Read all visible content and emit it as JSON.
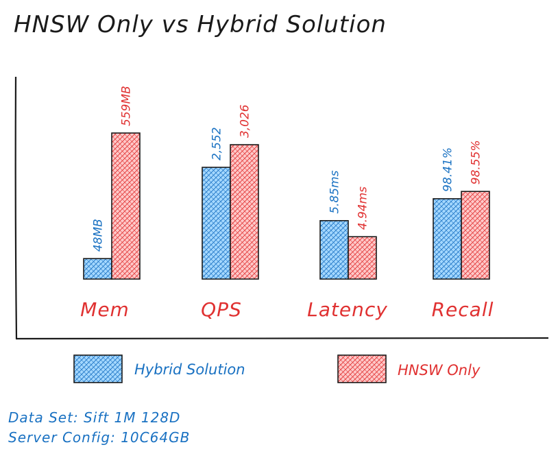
{
  "colors": {
    "hybrid": "#1971c2",
    "hnsw": "#e03131",
    "hybrid_fill": "#a5d8ff",
    "hnsw_fill": "#ffc9c9",
    "ink": "#1a1a1a"
  },
  "chart_data": {
    "type": "bar",
    "title": "HNSW Only vs Hybrid Solution",
    "categories": [
      "Mem",
      "QPS",
      "Latency",
      "Recall"
    ],
    "series": [
      {
        "name": "Hybrid Solution",
        "color_key": "hybrid",
        "labels": [
          "48MB",
          "2,552",
          "5.85ms",
          "98.41%"
        ]
      },
      {
        "name": "HNSW Only",
        "color_key": "hnsw",
        "labels": [
          "559MB",
          "3,026",
          "4.94ms",
          "98.55%"
        ]
      }
    ],
    "values": {
      "Mem": [
        48,
        559
      ],
      "QPS": [
        2552,
        3026
      ],
      "Latency": [
        5.85,
        4.94
      ],
      "Recall": [
        98.41,
        98.55
      ]
    },
    "bar_levels": {
      "Mem": [
        0.14,
        1.0
      ],
      "QPS": [
        0.765,
        0.92
      ],
      "Latency": [
        0.4,
        0.29
      ],
      "Recall": [
        0.55,
        0.6
      ]
    },
    "grid": false,
    "legend_position": "bottom"
  },
  "notes": {
    "line1": "Data Set: Sift 1M 128D",
    "line2": "Server Config: 10C64GB"
  }
}
